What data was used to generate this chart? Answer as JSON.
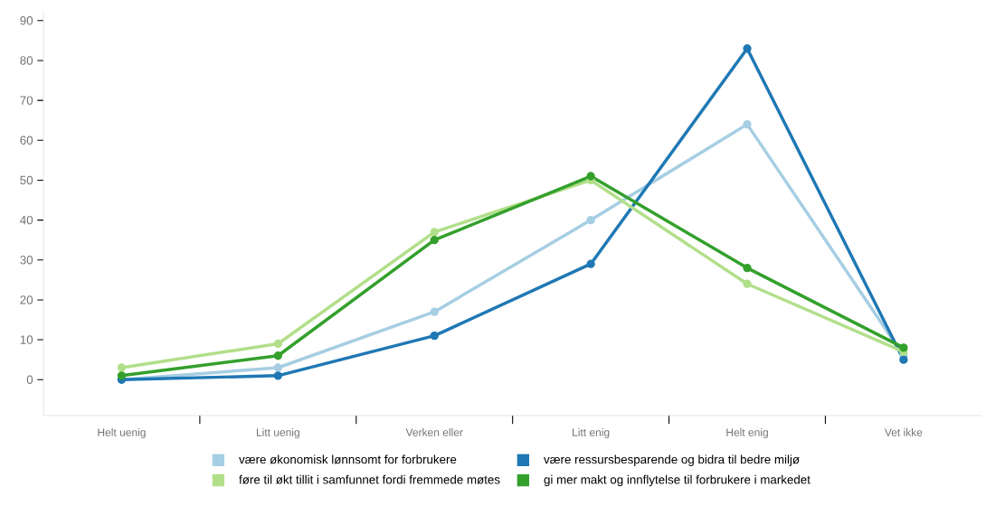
{
  "chart_data": {
    "type": "line",
    "categories": [
      "Helt uenig",
      "Litt uenig",
      "Verken eller",
      "Litt enig",
      "Helt enig",
      "Vet ikke"
    ],
    "series": [
      {
        "name": "være økonomisk lønnsomt for forbrukere",
        "color": "#a6cee3",
        "values": [
          0,
          3,
          17,
          40,
          64,
          6
        ]
      },
      {
        "name": "være ressursbesparende og bidra til bedre miljø",
        "color": "#1f78b4",
        "values": [
          0,
          1,
          11,
          29,
          83,
          5
        ]
      },
      {
        "name": "føre til økt tillit i samfunnet fordi fremmede møtes",
        "color": "#b2df8a",
        "values": [
          3,
          9,
          37,
          50,
          24,
          7
        ]
      },
      {
        "name": "gi mer makt og innflytelse til forbrukere i markedet",
        "color": "#33a02c",
        "values": [
          1,
          6,
          35,
          51,
          28,
          8
        ]
      }
    ],
    "ylim": [
      -9,
      92
    ],
    "yticks": [
      0,
      10,
      20,
      30,
      40,
      50,
      60,
      70,
      80,
      90
    ],
    "legend": "bottom",
    "marker": "circle"
  }
}
